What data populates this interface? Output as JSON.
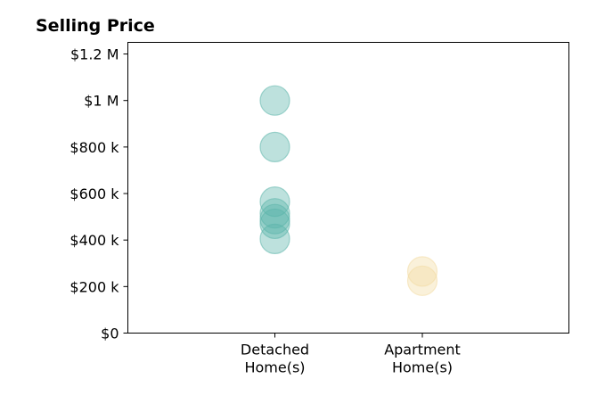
{
  "chart_data": {
    "type": "scatter",
    "title": "Selling Price",
    "xlabel": "",
    "ylabel": "",
    "categories": [
      [
        "Detached",
        "Home(s)"
      ],
      [
        "Apartment",
        "Home(s)"
      ]
    ],
    "ylim": [
      0,
      1250000
    ],
    "yticks": [
      0,
      200000,
      400000,
      600000,
      800000,
      1000000,
      1200000
    ],
    "ytick_labels": [
      "$0",
      "$200 k",
      "$400 k",
      "$600 k",
      "$800 k",
      "$1 M",
      "$1.2 M"
    ],
    "grid": false,
    "legend": "none",
    "series": [
      {
        "category_index": 0,
        "color": "#5bb5a9",
        "values": [
          1000000,
          800000,
          565000,
          515000,
          490000,
          470000,
          405000
        ]
      },
      {
        "category_index": 1,
        "color": "#f2dba2",
        "values": [
          265000,
          225000
        ]
      }
    ]
  }
}
